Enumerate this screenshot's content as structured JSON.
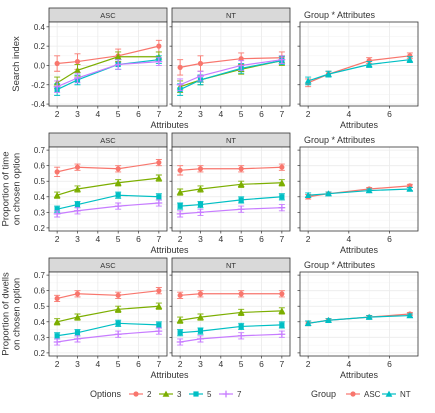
{
  "chart_data": {
    "type": "line",
    "x_ticks": [
      2,
      3,
      4,
      5,
      6,
      7
    ],
    "rows": [
      {
        "ylabel": [
          "Search index"
        ],
        "ylim": [
          -0.42,
          0.45
        ],
        "yticks": [
          -0.4,
          -0.2,
          0.0,
          0.2,
          0.4
        ],
        "ytick_labels": [
          "-0.4",
          "-0.2",
          "0.0",
          "0.2",
          "0.4"
        ],
        "facets": [
          {
            "strip": "ASC",
            "series": [
              {
                "name": "2",
                "x": [
                  2,
                  3,
                  5,
                  7
                ],
                "y": [
                  0.02,
                  0.04,
                  0.1,
                  0.2
                ],
                "err": [
                  0.08,
                  0.08,
                  0.07,
                  0.06
                ]
              },
              {
                "name": "3",
                "x": [
                  2,
                  3,
                  5,
                  7
                ],
                "y": [
                  -0.18,
                  -0.05,
                  0.09,
                  0.09
                ],
                "err": [
                  0.06,
                  0.06,
                  0.05,
                  0.05
                ]
              },
              {
                "name": "5",
                "x": [
                  2,
                  3,
                  5,
                  7
                ],
                "y": [
                  -0.25,
                  -0.15,
                  0.01,
                  0.06
                ],
                "err": [
                  0.06,
                  0.05,
                  0.05,
                  0.04
                ]
              },
              {
                "name": "7",
                "x": [
                  2,
                  3,
                  5,
                  7
                ],
                "y": [
                  -0.22,
                  -0.13,
                  0.01,
                  0.04
                ],
                "err": [
                  0.06,
                  0.05,
                  0.05,
                  0.04
                ]
              }
            ]
          },
          {
            "strip": "NT",
            "series": [
              {
                "name": "2",
                "x": [
                  2,
                  3,
                  5,
                  7
                ],
                "y": [
                  -0.02,
                  0.02,
                  0.07,
                  0.08
                ],
                "err": [
                  0.08,
                  0.08,
                  0.06,
                  0.06
                ]
              },
              {
                "name": "3",
                "x": [
                  2,
                  3,
                  5,
                  7
                ],
                "y": [
                  -0.22,
                  -0.15,
                  -0.04,
                  0.05
                ],
                "err": [
                  0.06,
                  0.05,
                  0.05,
                  0.05
                ]
              },
              {
                "name": "5",
                "x": [
                  2,
                  3,
                  5,
                  7
                ],
                "y": [
                  -0.25,
                  -0.15,
                  -0.03,
                  0.05
                ],
                "err": [
                  0.06,
                  0.05,
                  0.05,
                  0.04
                ]
              },
              {
                "name": "7",
                "x": [
                  2,
                  3,
                  5,
                  7
                ],
                "y": [
                  -0.2,
                  -0.11,
                  0.0,
                  0.06
                ],
                "err": [
                  0.06,
                  0.05,
                  0.05,
                  0.04
                ]
              }
            ]
          }
        ],
        "group": {
          "title": "Group * Attributes",
          "series": [
            {
              "name": "ASC",
              "x": [
                2,
                3,
                5,
                7
              ],
              "y": [
                -0.18,
                -0.09,
                0.05,
                0.1
              ],
              "err": [
                0.04,
                0.03,
                0.03,
                0.03
              ]
            },
            {
              "name": "NT",
              "x": [
                2,
                3,
                5,
                7
              ],
              "y": [
                -0.16,
                -0.09,
                0.01,
                0.06
              ],
              "err": [
                0.04,
                0.03,
                0.03,
                0.03
              ]
            }
          ]
        }
      },
      {
        "ylabel": [
          "Proportion of time",
          "on chosen option"
        ],
        "ylim": [
          0.18,
          0.72
        ],
        "yticks": [
          0.2,
          0.3,
          0.4,
          0.5,
          0.6,
          0.7
        ],
        "ytick_labels": [
          "0.2",
          "0.3",
          "0.4",
          "0.5",
          "0.6",
          "0.7"
        ],
        "facets": [
          {
            "strip": "ASC",
            "series": [
              {
                "name": "2",
                "x": [
                  2,
                  3,
                  5,
                  7
                ],
                "y": [
                  0.56,
                  0.59,
                  0.58,
                  0.62
                ],
                "err": [
                  0.03,
                  0.02,
                  0.02,
                  0.02
                ]
              },
              {
                "name": "3",
                "x": [
                  2,
                  3,
                  5,
                  7
                ],
                "y": [
                  0.41,
                  0.45,
                  0.49,
                  0.52
                ],
                "err": [
                  0.02,
                  0.02,
                  0.02,
                  0.02
                ]
              },
              {
                "name": "5",
                "x": [
                  2,
                  3,
                  5,
                  7
                ],
                "y": [
                  0.32,
                  0.35,
                  0.41,
                  0.4
                ],
                "err": [
                  0.02,
                  0.02,
                  0.02,
                  0.02
                ]
              },
              {
                "name": "7",
                "x": [
                  2,
                  3,
                  5,
                  7
                ],
                "y": [
                  0.29,
                  0.31,
                  0.34,
                  0.36
                ],
                "err": [
                  0.02,
                  0.02,
                  0.02,
                  0.02
                ]
              }
            ]
          },
          {
            "strip": "NT",
            "series": [
              {
                "name": "2",
                "x": [
                  2,
                  3,
                  5,
                  7
                ],
                "y": [
                  0.57,
                  0.58,
                  0.58,
                  0.59
                ],
                "err": [
                  0.03,
                  0.02,
                  0.02,
                  0.02
                ]
              },
              {
                "name": "3",
                "x": [
                  2,
                  3,
                  5,
                  7
                ],
                "y": [
                  0.43,
                  0.45,
                  0.48,
                  0.49
                ],
                "err": [
                  0.02,
                  0.02,
                  0.02,
                  0.02
                ]
              },
              {
                "name": "5",
                "x": [
                  2,
                  3,
                  5,
                  7
                ],
                "y": [
                  0.34,
                  0.35,
                  0.38,
                  0.4
                ],
                "err": [
                  0.02,
                  0.02,
                  0.02,
                  0.02
                ]
              },
              {
                "name": "7",
                "x": [
                  2,
                  3,
                  5,
                  7
                ],
                "y": [
                  0.29,
                  0.3,
                  0.32,
                  0.33
                ],
                "err": [
                  0.02,
                  0.02,
                  0.02,
                  0.02
                ]
              }
            ]
          }
        ],
        "group": {
          "title": "Group * Attributes",
          "series": [
            {
              "name": "ASC",
              "x": [
                2,
                3,
                5,
                7
              ],
              "y": [
                0.4,
                0.42,
                0.45,
                0.47
              ],
              "err": [
                0.015,
                0.01,
                0.01,
                0.01
              ]
            },
            {
              "name": "NT",
              "x": [
                2,
                3,
                5,
                7
              ],
              "y": [
                0.41,
                0.42,
                0.44,
                0.45
              ],
              "err": [
                0.015,
                0.01,
                0.01,
                0.01
              ]
            }
          ]
        }
      },
      {
        "ylabel": [
          "Proportion of dwells",
          "on chosen option"
        ],
        "ylim": [
          0.18,
          0.72
        ],
        "yticks": [
          0.2,
          0.3,
          0.4,
          0.5,
          0.6,
          0.7
        ],
        "ytick_labels": [
          "0.2",
          "0.3",
          "0.4",
          "0.5",
          "0.6",
          "0.7"
        ],
        "facets": [
          {
            "strip": "ASC",
            "series": [
              {
                "name": "2",
                "x": [
                  2,
                  3,
                  5,
                  7
                ],
                "y": [
                  0.55,
                  0.58,
                  0.57,
                  0.6
                ],
                "err": [
                  0.02,
                  0.02,
                  0.02,
                  0.02
                ]
              },
              {
                "name": "3",
                "x": [
                  2,
                  3,
                  5,
                  7
                ],
                "y": [
                  0.4,
                  0.43,
                  0.48,
                  0.5
                ],
                "err": [
                  0.02,
                  0.02,
                  0.02,
                  0.02
                ]
              },
              {
                "name": "5",
                "x": [
                  2,
                  3,
                  5,
                  7
                ],
                "y": [
                  0.31,
                  0.33,
                  0.39,
                  0.38
                ],
                "err": [
                  0.02,
                  0.02,
                  0.02,
                  0.02
                ]
              },
              {
                "name": "7",
                "x": [
                  2,
                  3,
                  5,
                  7
                ],
                "y": [
                  0.27,
                  0.29,
                  0.32,
                  0.34
                ],
                "err": [
                  0.02,
                  0.02,
                  0.02,
                  0.02
                ]
              }
            ]
          },
          {
            "strip": "NT",
            "series": [
              {
                "name": "2",
                "x": [
                  2,
                  3,
                  5,
                  7
                ],
                "y": [
                  0.57,
                  0.58,
                  0.58,
                  0.58
                ],
                "err": [
                  0.02,
                  0.02,
                  0.02,
                  0.02
                ]
              },
              {
                "name": "3",
                "x": [
                  2,
                  3,
                  5,
                  7
                ],
                "y": [
                  0.41,
                  0.43,
                  0.46,
                  0.47
                ],
                "err": [
                  0.02,
                  0.02,
                  0.02,
                  0.02
                ]
              },
              {
                "name": "5",
                "x": [
                  2,
                  3,
                  5,
                  7
                ],
                "y": [
                  0.33,
                  0.34,
                  0.37,
                  0.38
                ],
                "err": [
                  0.02,
                  0.02,
                  0.02,
                  0.02
                ]
              },
              {
                "name": "7",
                "x": [
                  2,
                  3,
                  5,
                  7
                ],
                "y": [
                  0.27,
                  0.29,
                  0.31,
                  0.32
                ],
                "err": [
                  0.02,
                  0.02,
                  0.02,
                  0.02
                ]
              }
            ]
          }
        ],
        "group": {
          "title": "Group * Attributes",
          "series": [
            {
              "name": "ASC",
              "x": [
                2,
                3,
                5,
                7
              ],
              "y": [
                0.39,
                0.41,
                0.43,
                0.45
              ],
              "err": [
                0.015,
                0.01,
                0.01,
                0.01
              ]
            },
            {
              "name": "NT",
              "x": [
                2,
                3,
                5,
                7
              ],
              "y": [
                0.39,
                0.41,
                0.43,
                0.44
              ],
              "err": [
                0.015,
                0.01,
                0.01,
                0.01
              ]
            }
          ]
        }
      }
    ],
    "xlabel": "Attributes",
    "group_x_ticks": [
      2,
      4,
      6
    ],
    "group_xlim": [
      1.6,
      7.4
    ],
    "xlim": [
      1.6,
      7.4
    ],
    "legend_options": {
      "title": "Options",
      "entries": [
        {
          "name": "2",
          "color": "#F8766D",
          "marker": "circle"
        },
        {
          "name": "3",
          "color": "#7CAE00",
          "marker": "triangle"
        },
        {
          "name": "5",
          "color": "#00BFC4",
          "marker": "square"
        },
        {
          "name": "7",
          "color": "#C77CFF",
          "marker": "plus"
        }
      ]
    },
    "legend_group": {
      "title": "Group",
      "entries": [
        {
          "name": "ASC",
          "color": "#F8766D",
          "marker": "circle"
        },
        {
          "name": "NT",
          "color": "#00BFC4",
          "marker": "triangle"
        }
      ]
    },
    "grid": true,
    "legend_position": "bottom"
  }
}
